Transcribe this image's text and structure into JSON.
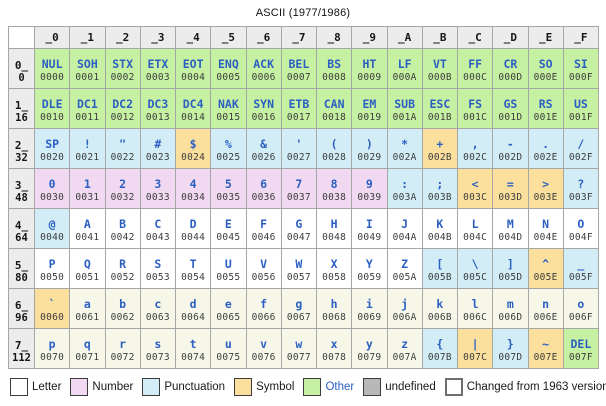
{
  "title": "ASCII (1977/1986)",
  "colors": {
    "char_text": "#2b5fc2",
    "hex_text": "#3d3d3d",
    "grid_border": "#a6a6a6",
    "changed_border": "#757575",
    "header_bg": "#ececec"
  },
  "category_colors": {
    "letter": "#ffffff",
    "letter_lower": "#f7f7e9",
    "number": "#f0d9f1",
    "punctuation": "#d3edf7",
    "symbol": "#fbdf9d",
    "other": "#c6f0a2",
    "undefined": "#b8b8b8"
  },
  "legend": {
    "items": [
      {
        "label": "Letter",
        "color": "#ffffff",
        "thick": false,
        "label_color": "#1a1a1a"
      },
      {
        "label": "Number",
        "color": "#f0d9f1",
        "thick": false,
        "label_color": "#1a1a1a"
      },
      {
        "label": "Punctuation",
        "color": "#d3edf7",
        "thick": false,
        "label_color": "#1a1a1a"
      },
      {
        "label": "Symbol",
        "color": "#fbdf9d",
        "thick": false,
        "label_color": "#1a1a1a"
      },
      {
        "label": "Other",
        "color": "#c6f0a2",
        "thick": false,
        "label_color": "#2b5fc2"
      },
      {
        "label": "undefined",
        "color": "#b8b8b8",
        "thick": false,
        "label_color": "#1a1a1a"
      },
      {
        "label": "Changed from 1963 version",
        "color": "#ffffff",
        "thick": true,
        "label_color": "#1a1a1a"
      }
    ]
  },
  "chart_data": {
    "type": "table",
    "title": "ASCII (1977/1986)",
    "column_headers": [
      "_0",
      "_1",
      "_2",
      "_3",
      "_4",
      "_5",
      "_6",
      "_7",
      "_8",
      "_9",
      "_A",
      "_B",
      "_C",
      "_D",
      "_E",
      "_F"
    ],
    "rows": [
      {
        "label": "0_",
        "dec": "0",
        "cells": [
          {
            "char": "NUL",
            "hex": "0000",
            "cat": "other",
            "chg": false
          },
          {
            "char": "SOH",
            "hex": "0001",
            "cat": "other",
            "chg": true
          },
          {
            "char": "STX",
            "hex": "0002",
            "cat": "other",
            "chg": true
          },
          {
            "char": "ETX",
            "hex": "0003",
            "cat": "other",
            "chg": true
          },
          {
            "char": "EOT",
            "hex": "0004",
            "cat": "other",
            "chg": false
          },
          {
            "char": "ENQ",
            "hex": "0005",
            "cat": "other",
            "chg": true
          },
          {
            "char": "ACK",
            "hex": "0006",
            "cat": "other",
            "chg": true
          },
          {
            "char": "BEL",
            "hex": "0007",
            "cat": "other",
            "chg": false
          },
          {
            "char": "BS",
            "hex": "0008",
            "cat": "other",
            "chg": true
          },
          {
            "char": "HT",
            "hex": "0009",
            "cat": "other",
            "chg": false
          },
          {
            "char": "LF",
            "hex": "000A",
            "cat": "other",
            "chg": false
          },
          {
            "char": "VT",
            "hex": "000B",
            "cat": "other",
            "chg": false
          },
          {
            "char": "FF",
            "hex": "000C",
            "cat": "other",
            "chg": false
          },
          {
            "char": "CR",
            "hex": "000D",
            "cat": "other",
            "chg": false
          },
          {
            "char": "SO",
            "hex": "000E",
            "cat": "other",
            "chg": false
          },
          {
            "char": "SI",
            "hex": "000F",
            "cat": "other",
            "chg": false
          }
        ]
      },
      {
        "label": "1_",
        "dec": "16",
        "cells": [
          {
            "char": "DLE",
            "hex": "0010",
            "cat": "other",
            "chg": true
          },
          {
            "char": "DC1",
            "hex": "0011",
            "cat": "other",
            "chg": false
          },
          {
            "char": "DC2",
            "hex": "0012",
            "cat": "other",
            "chg": false
          },
          {
            "char": "DC3",
            "hex": "0013",
            "cat": "other",
            "chg": false
          },
          {
            "char": "DC4",
            "hex": "0014",
            "cat": "other",
            "chg": false
          },
          {
            "char": "NAK",
            "hex": "0015",
            "cat": "other",
            "chg": true
          },
          {
            "char": "SYN",
            "hex": "0016",
            "cat": "other",
            "chg": true
          },
          {
            "char": "ETB",
            "hex": "0017",
            "cat": "other",
            "chg": true
          },
          {
            "char": "CAN",
            "hex": "0018",
            "cat": "other",
            "chg": true
          },
          {
            "char": "EM",
            "hex": "0019",
            "cat": "other",
            "chg": true
          },
          {
            "char": "SUB",
            "hex": "001A",
            "cat": "other",
            "chg": true
          },
          {
            "char": "ESC",
            "hex": "001B",
            "cat": "other",
            "chg": true
          },
          {
            "char": "FS",
            "hex": "001C",
            "cat": "other",
            "chg": true
          },
          {
            "char": "GS",
            "hex": "001D",
            "cat": "other",
            "chg": true
          },
          {
            "char": "RS",
            "hex": "001E",
            "cat": "other",
            "chg": true
          },
          {
            "char": "US",
            "hex": "001F",
            "cat": "other",
            "chg": true
          }
        ]
      },
      {
        "label": "2_",
        "dec": "32",
        "cells": [
          {
            "char": "SP",
            "hex": "0020",
            "cat": "punctuation",
            "chg": false
          },
          {
            "char": "!",
            "hex": "0021",
            "cat": "punctuation",
            "chg": false
          },
          {
            "char": "\"",
            "hex": "0022",
            "cat": "punctuation",
            "chg": false
          },
          {
            "char": "#",
            "hex": "0023",
            "cat": "punctuation",
            "chg": false
          },
          {
            "char": "$",
            "hex": "0024",
            "cat": "symbol",
            "chg": false
          },
          {
            "char": "%",
            "hex": "0025",
            "cat": "punctuation",
            "chg": false
          },
          {
            "char": "&",
            "hex": "0026",
            "cat": "punctuation",
            "chg": false
          },
          {
            "char": "'",
            "hex": "0027",
            "cat": "punctuation",
            "chg": false
          },
          {
            "char": "(",
            "hex": "0028",
            "cat": "punctuation",
            "chg": false
          },
          {
            "char": ")",
            "hex": "0029",
            "cat": "punctuation",
            "chg": false
          },
          {
            "char": "*",
            "hex": "002A",
            "cat": "punctuation",
            "chg": false
          },
          {
            "char": "+",
            "hex": "002B",
            "cat": "symbol",
            "chg": false
          },
          {
            "char": ",",
            "hex": "002C",
            "cat": "punctuation",
            "chg": false
          },
          {
            "char": "-",
            "hex": "002D",
            "cat": "punctuation",
            "chg": false
          },
          {
            "char": ".",
            "hex": "002E",
            "cat": "punctuation",
            "chg": false
          },
          {
            "char": "/",
            "hex": "002F",
            "cat": "punctuation",
            "chg": false
          }
        ]
      },
      {
        "label": "3_",
        "dec": "48",
        "cells": [
          {
            "char": "0",
            "hex": "0030",
            "cat": "number",
            "chg": false
          },
          {
            "char": "1",
            "hex": "0031",
            "cat": "number",
            "chg": false
          },
          {
            "char": "2",
            "hex": "0032",
            "cat": "number",
            "chg": false
          },
          {
            "char": "3",
            "hex": "0033",
            "cat": "number",
            "chg": false
          },
          {
            "char": "4",
            "hex": "0034",
            "cat": "number",
            "chg": false
          },
          {
            "char": "5",
            "hex": "0035",
            "cat": "number",
            "chg": false
          },
          {
            "char": "6",
            "hex": "0036",
            "cat": "number",
            "chg": false
          },
          {
            "char": "7",
            "hex": "0037",
            "cat": "number",
            "chg": false
          },
          {
            "char": "8",
            "hex": "0038",
            "cat": "number",
            "chg": false
          },
          {
            "char": "9",
            "hex": "0039",
            "cat": "number",
            "chg": false
          },
          {
            "char": ":",
            "hex": "003A",
            "cat": "punctuation",
            "chg": false
          },
          {
            "char": ";",
            "hex": "003B",
            "cat": "punctuation",
            "chg": false
          },
          {
            "char": "<",
            "hex": "003C",
            "cat": "symbol",
            "chg": false
          },
          {
            "char": "=",
            "hex": "003D",
            "cat": "symbol",
            "chg": false
          },
          {
            "char": ">",
            "hex": "003E",
            "cat": "symbol",
            "chg": false
          },
          {
            "char": "?",
            "hex": "003F",
            "cat": "punctuation",
            "chg": false
          }
        ]
      },
      {
        "label": "4_",
        "dec": "64",
        "cells": [
          {
            "char": "@",
            "hex": "0040",
            "cat": "punctuation",
            "chg": true
          },
          {
            "char": "A",
            "hex": "0041",
            "cat": "letter",
            "chg": false
          },
          {
            "char": "B",
            "hex": "0042",
            "cat": "letter",
            "chg": false
          },
          {
            "char": "C",
            "hex": "0043",
            "cat": "letter",
            "chg": false
          },
          {
            "char": "D",
            "hex": "0044",
            "cat": "letter",
            "chg": false
          },
          {
            "char": "E",
            "hex": "0045",
            "cat": "letter",
            "chg": false
          },
          {
            "char": "F",
            "hex": "0046",
            "cat": "letter",
            "chg": false
          },
          {
            "char": "G",
            "hex": "0047",
            "cat": "letter",
            "chg": false
          },
          {
            "char": "H",
            "hex": "0048",
            "cat": "letter",
            "chg": false
          },
          {
            "char": "I",
            "hex": "0049",
            "cat": "letter",
            "chg": false
          },
          {
            "char": "J",
            "hex": "004A",
            "cat": "letter",
            "chg": false
          },
          {
            "char": "K",
            "hex": "004B",
            "cat": "letter",
            "chg": false
          },
          {
            "char": "L",
            "hex": "004C",
            "cat": "letter",
            "chg": false
          },
          {
            "char": "M",
            "hex": "004D",
            "cat": "letter",
            "chg": false
          },
          {
            "char": "N",
            "hex": "004E",
            "cat": "letter",
            "chg": false
          },
          {
            "char": "O",
            "hex": "004F",
            "cat": "letter",
            "chg": false
          }
        ]
      },
      {
        "label": "5_",
        "dec": "80",
        "cells": [
          {
            "char": "P",
            "hex": "0050",
            "cat": "letter",
            "chg": false
          },
          {
            "char": "Q",
            "hex": "0051",
            "cat": "letter",
            "chg": false
          },
          {
            "char": "R",
            "hex": "0052",
            "cat": "letter",
            "chg": false
          },
          {
            "char": "S",
            "hex": "0053",
            "cat": "letter",
            "chg": false
          },
          {
            "char": "T",
            "hex": "0054",
            "cat": "letter",
            "chg": false
          },
          {
            "char": "U",
            "hex": "0055",
            "cat": "letter",
            "chg": false
          },
          {
            "char": "V",
            "hex": "0056",
            "cat": "letter",
            "chg": false
          },
          {
            "char": "W",
            "hex": "0057",
            "cat": "letter",
            "chg": false
          },
          {
            "char": "X",
            "hex": "0058",
            "cat": "letter",
            "chg": false
          },
          {
            "char": "Y",
            "hex": "0059",
            "cat": "letter",
            "chg": false
          },
          {
            "char": "Z",
            "hex": "005A",
            "cat": "letter",
            "chg": false
          },
          {
            "char": "[",
            "hex": "005B",
            "cat": "punctuation",
            "chg": false
          },
          {
            "char": "\\",
            "hex": "005C",
            "cat": "punctuation",
            "chg": true
          },
          {
            "char": "]",
            "hex": "005D",
            "cat": "punctuation",
            "chg": false
          },
          {
            "char": "^",
            "hex": "005E",
            "cat": "symbol",
            "chg": true
          },
          {
            "char": "_",
            "hex": "005F",
            "cat": "punctuation",
            "chg": true
          }
        ]
      },
      {
        "label": "6_",
        "dec": "96",
        "cells": [
          {
            "char": "`",
            "hex": "0060",
            "cat": "symbol",
            "chg": true
          },
          {
            "char": "a",
            "hex": "0061",
            "cat": "letter_lower",
            "chg": false
          },
          {
            "char": "b",
            "hex": "0062",
            "cat": "letter_lower",
            "chg": false
          },
          {
            "char": "c",
            "hex": "0063",
            "cat": "letter_lower",
            "chg": false
          },
          {
            "char": "d",
            "hex": "0064",
            "cat": "letter_lower",
            "chg": false
          },
          {
            "char": "e",
            "hex": "0065",
            "cat": "letter_lower",
            "chg": false
          },
          {
            "char": "f",
            "hex": "0066",
            "cat": "letter_lower",
            "chg": false
          },
          {
            "char": "g",
            "hex": "0067",
            "cat": "letter_lower",
            "chg": false
          },
          {
            "char": "h",
            "hex": "0068",
            "cat": "letter_lower",
            "chg": false
          },
          {
            "char": "i",
            "hex": "0069",
            "cat": "letter_lower",
            "chg": false
          },
          {
            "char": "j",
            "hex": "006A",
            "cat": "letter_lower",
            "chg": false
          },
          {
            "char": "k",
            "hex": "006B",
            "cat": "letter_lower",
            "chg": false
          },
          {
            "char": "l",
            "hex": "006C",
            "cat": "letter_lower",
            "chg": false
          },
          {
            "char": "m",
            "hex": "006D",
            "cat": "letter_lower",
            "chg": false
          },
          {
            "char": "n",
            "hex": "006E",
            "cat": "letter_lower",
            "chg": false
          },
          {
            "char": "o",
            "hex": "006F",
            "cat": "letter_lower",
            "chg": false
          }
        ]
      },
      {
        "label": "7_",
        "dec": "112",
        "cells": [
          {
            "char": "p",
            "hex": "0070",
            "cat": "letter_lower",
            "chg": false
          },
          {
            "char": "q",
            "hex": "0071",
            "cat": "letter_lower",
            "chg": false
          },
          {
            "char": "r",
            "hex": "0072",
            "cat": "letter_lower",
            "chg": false
          },
          {
            "char": "s",
            "hex": "0073",
            "cat": "letter_lower",
            "chg": false
          },
          {
            "char": "t",
            "hex": "0074",
            "cat": "letter_lower",
            "chg": false
          },
          {
            "char": "u",
            "hex": "0075",
            "cat": "letter_lower",
            "chg": false
          },
          {
            "char": "v",
            "hex": "0076",
            "cat": "letter_lower",
            "chg": false
          },
          {
            "char": "w",
            "hex": "0077",
            "cat": "letter_lower",
            "chg": false
          },
          {
            "char": "x",
            "hex": "0078",
            "cat": "letter_lower",
            "chg": false
          },
          {
            "char": "y",
            "hex": "0079",
            "cat": "letter_lower",
            "chg": false
          },
          {
            "char": "z",
            "hex": "007A",
            "cat": "letter_lower",
            "chg": false
          },
          {
            "char": "{",
            "hex": "007B",
            "cat": "punctuation",
            "chg": false
          },
          {
            "char": "|",
            "hex": "007C",
            "cat": "symbol",
            "chg": true
          },
          {
            "char": "}",
            "hex": "007D",
            "cat": "punctuation",
            "chg": false
          },
          {
            "char": "~",
            "hex": "007E",
            "cat": "symbol",
            "chg": true
          },
          {
            "char": "DEL",
            "hex": "007F",
            "cat": "other",
            "chg": false
          }
        ]
      }
    ]
  }
}
